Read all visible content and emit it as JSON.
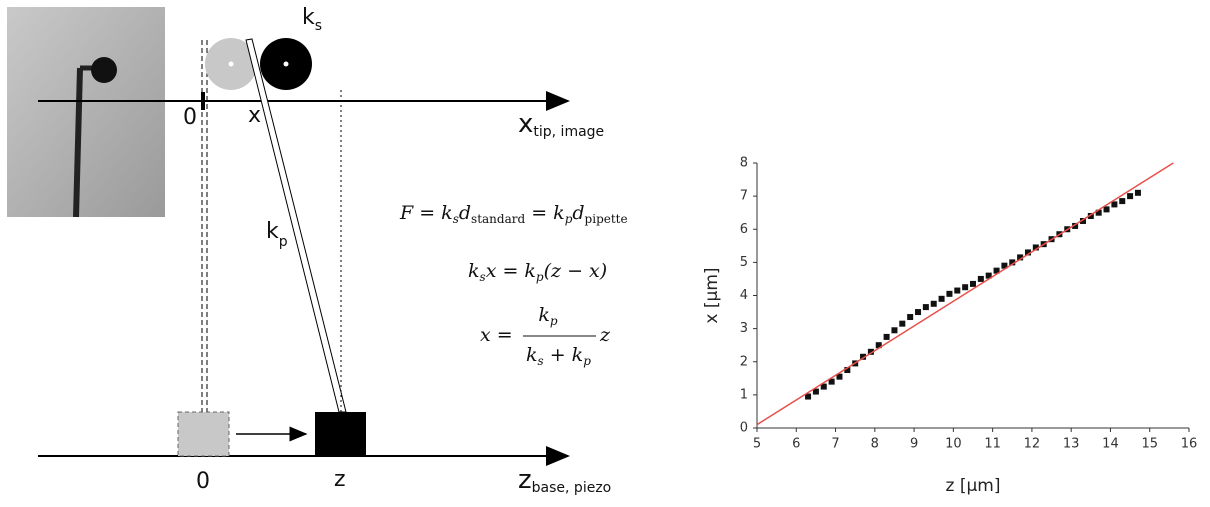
{
  "diagram": {
    "top_origin": "0",
    "top_x": "x",
    "ks": [
      "k",
      "s"
    ],
    "kp": [
      "k",
      "p"
    ],
    "top_axis": [
      "x",
      "tip, image"
    ],
    "bottom_origin": "0",
    "bottom_z": "z",
    "bottom_axis": [
      "z",
      "base, piezo"
    ],
    "eq1": [
      "F = k",
      "s",
      "d",
      "standard",
      " = k",
      "p",
      "d",
      "pipette"
    ],
    "eq2": [
      "k",
      "s",
      "x = k",
      "p",
      "(z − x)"
    ],
    "eq3": [
      "x =",
      "k",
      "p",
      "k",
      "s",
      " + k",
      "p",
      "z"
    ]
  },
  "chart_data": {
    "type": "scatter",
    "xlabel": "z [µm]",
    "ylabel": "x [µm]",
    "xlim": [
      5,
      16
    ],
    "xticks": [
      5,
      6,
      7,
      8,
      9,
      10,
      11,
      12,
      13,
      14,
      15,
      16
    ],
    "ylim": [
      0,
      8
    ],
    "yticks": [
      0,
      1,
      2,
      3,
      4,
      5,
      6,
      7,
      8
    ],
    "series": [
      {
        "color": "#111111",
        "x": [
          6.3,
          6.5,
          6.7,
          6.9,
          7.1,
          7.3,
          7.5,
          7.7,
          7.9,
          8.1,
          8.3,
          8.5,
          8.7,
          8.9,
          9.1,
          9.3,
          9.5,
          9.7,
          9.9,
          10.1,
          10.3,
          10.5,
          10.7,
          10.9,
          11.1,
          11.3,
          11.5,
          11.7,
          11.9,
          12.1,
          12.3,
          12.5,
          12.7,
          12.9,
          13.1,
          13.3,
          13.5,
          13.7,
          13.9,
          14.1,
          14.3,
          14.5,
          14.7
        ],
        "values": [
          0.95,
          1.1,
          1.25,
          1.4,
          1.55,
          1.75,
          1.95,
          2.15,
          2.3,
          2.5,
          2.75,
          2.95,
          3.15,
          3.35,
          3.5,
          3.65,
          3.75,
          3.9,
          4.05,
          4.15,
          4.25,
          4.35,
          4.5,
          4.6,
          4.75,
          4.9,
          5.0,
          5.15,
          5.3,
          5.45,
          5.55,
          5.7,
          5.85,
          6.0,
          6.1,
          6.25,
          6.4,
          6.5,
          6.6,
          6.75,
          6.85,
          7.0,
          7.1
        ]
      },
      {
        "type": "line",
        "color": "#e8504a",
        "x": [
          5,
          15.6
        ],
        "values": [
          0.1,
          8.0
        ]
      }
    ]
  }
}
